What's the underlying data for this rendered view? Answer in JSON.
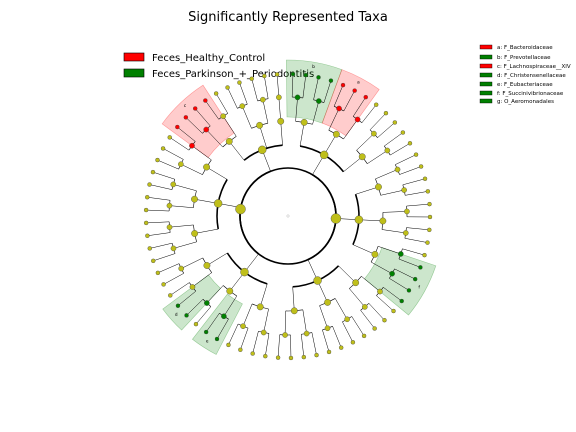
{
  "title": "Significantly Represented Taxa",
  "classes": [
    {
      "name": "Feces_Healthy_Control",
      "color": "#ff0000"
    },
    {
      "name": "Feces_Parkinson_+_Periodontitis",
      "color": "#008000"
    }
  ],
  "taxa_legend": [
    {
      "label": "a: F_Bacteroidaceae",
      "color": "#ff0000"
    },
    {
      "label": "b: F_Prevotellaceae",
      "color": "#008000"
    },
    {
      "label": "c: F_Lachnospiraceae__XIV",
      "color": "#ff0000"
    },
    {
      "label": "d: F_Christensenellaceae",
      "color": "#008000"
    },
    {
      "label": "e: F_Eubacteriaceae",
      "color": "#008000"
    },
    {
      "label": "f: F_Succinivibrionaceae",
      "color": "#008000"
    },
    {
      "label": "g: O_Aeromonadales",
      "color": "#008000"
    }
  ],
  "highlight_letters": [
    "a",
    "b",
    "c",
    "d",
    "e",
    "f",
    "g"
  ],
  "node_color": "#bfbf1a"
}
